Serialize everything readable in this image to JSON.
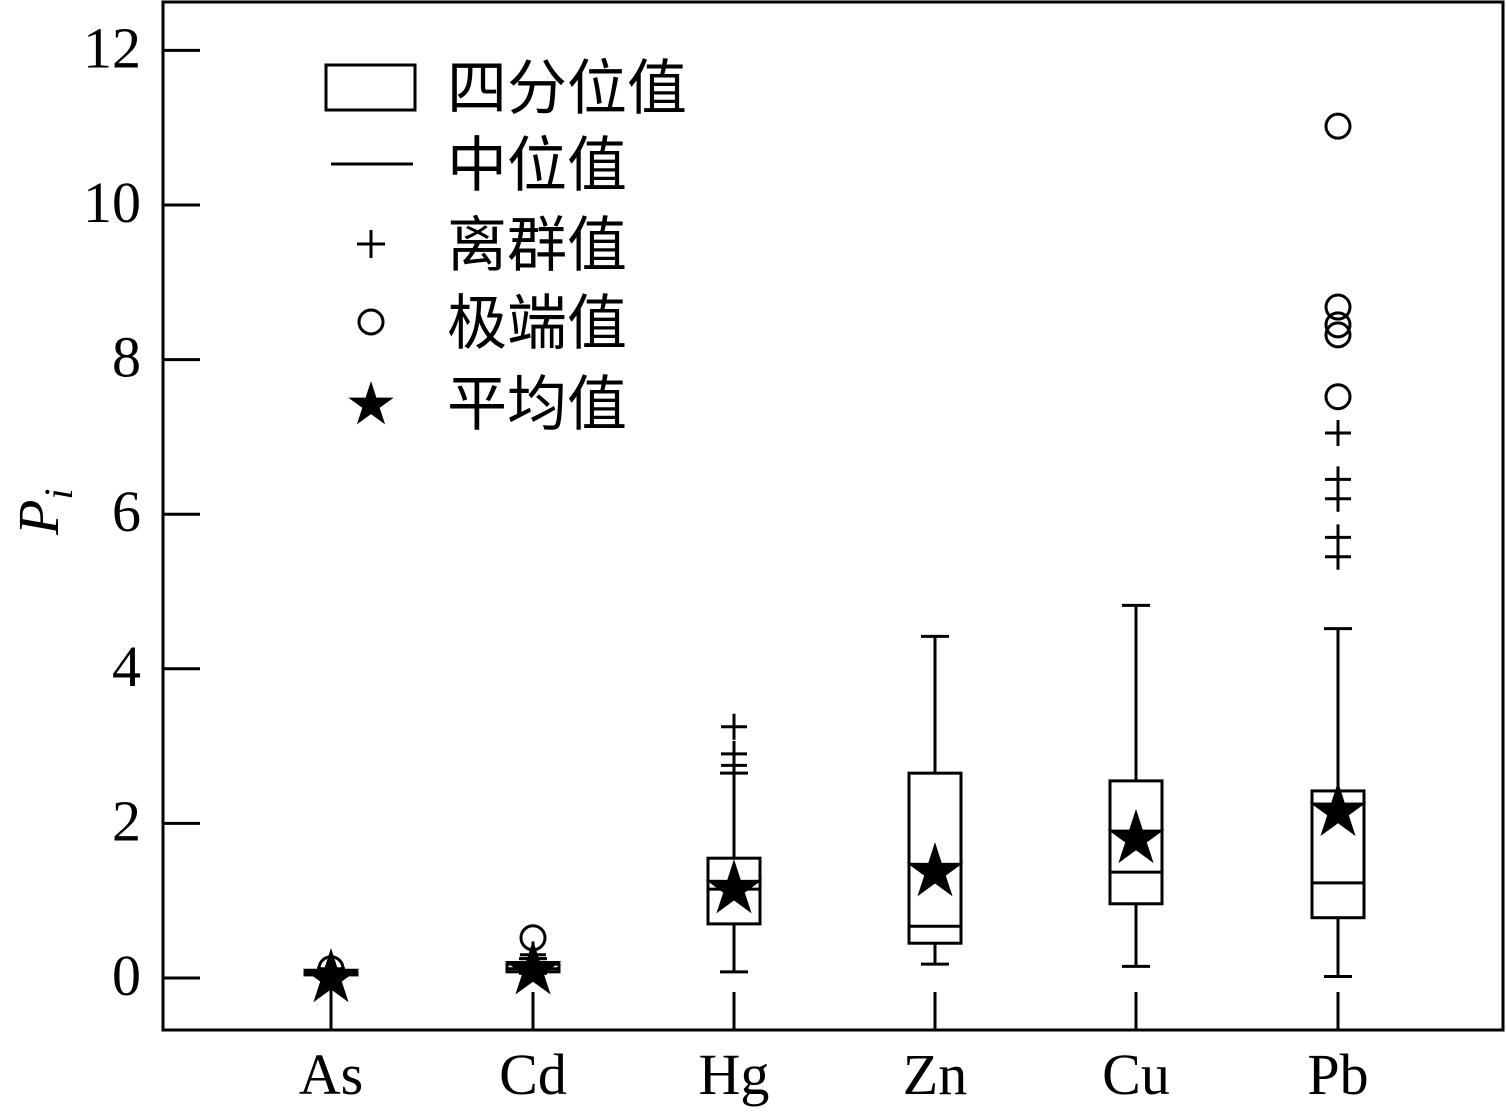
{
  "chart_data": {
    "type": "box",
    "ylabel": "P",
    "ylabel_sub": "i",
    "ylim": [
      -0.7,
      12.6
    ],
    "yticks": [
      0,
      2,
      4,
      6,
      8,
      10,
      12
    ],
    "yticklabels": [
      "0",
      "2",
      "4",
      "6",
      "8",
      "10",
      "12"
    ],
    "categories": [
      "As",
      "Cd",
      "Hg",
      "Zn",
      "Cu",
      "Pb"
    ],
    "boxes": [
      {
        "category": "As",
        "whislo": -0.6,
        "q1": 0.04,
        "med": 0.06,
        "q3": 0.08,
        "whishi": 0.12,
        "mean": 0.0,
        "outliers": [],
        "extremes": [
          0.12
        ]
      },
      {
        "category": "Cd",
        "whislo": 0.06,
        "q1": 0.08,
        "med": 0.12,
        "q3": 0.18,
        "whishi": 0.25,
        "mean": 0.1,
        "outliers": [
          0.25,
          0.3
        ],
        "extremes": [
          0.52
        ]
      },
      {
        "category": "Hg",
        "whislo": 0.08,
        "q1": 0.7,
        "med": 1.15,
        "q3": 1.55,
        "whishi": 2.65,
        "mean": 1.15,
        "outliers": [
          2.75,
          2.9,
          3.25
        ],
        "extremes": []
      },
      {
        "category": "Zn",
        "whislo": 0.18,
        "q1": 0.45,
        "med": 0.67,
        "q3": 2.65,
        "whishi": 4.42,
        "mean": 1.37,
        "outliers": [],
        "extremes": []
      },
      {
        "category": "Cu",
        "whislo": 0.15,
        "q1": 0.96,
        "med": 1.37,
        "q3": 2.55,
        "whishi": 4.82,
        "mean": 1.8,
        "outliers": [],
        "extremes": []
      },
      {
        "category": "Pb",
        "whislo": 0.02,
        "q1": 0.78,
        "med": 1.23,
        "q3": 2.42,
        "whishi": 4.52,
        "mean": 2.15,
        "outliers": [
          5.45,
          5.7,
          6.2,
          6.45,
          7.05
        ],
        "extremes": [
          7.52,
          8.32,
          8.45,
          8.68,
          11.02
        ]
      }
    ],
    "legend": {
      "position": "top-left",
      "items": [
        {
          "symbol": "box",
          "label": "四分位值"
        },
        {
          "symbol": "line",
          "label": "中位值"
        },
        {
          "symbol": "plus",
          "label": "离群值"
        },
        {
          "symbol": "circle",
          "label": "极端值"
        },
        {
          "symbol": "star",
          "label": "平均值"
        }
      ]
    },
    "grid": false,
    "colors": {
      "ink": "#000000",
      "background": "#ffffff"
    }
  }
}
